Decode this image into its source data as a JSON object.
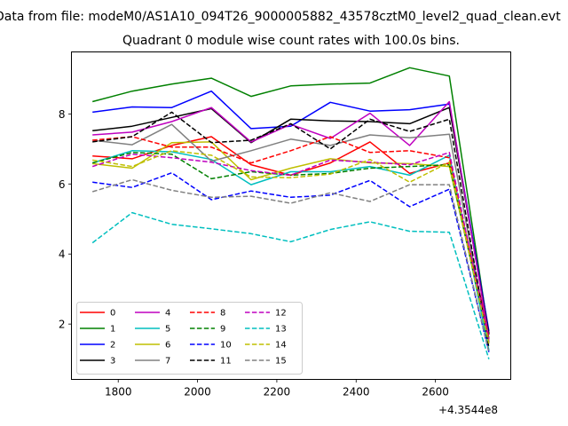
{
  "chart_data": {
    "type": "line",
    "suptitle": "Data from file: modeM0/AS1A10_094T26_9000005882_43578cztM0_level2_quad_clean.evt",
    "title": "Quadrant 0 module wise count rates with 100.0s bins.",
    "xlabel": "",
    "ylabel": "",
    "x_offset_label": "+4.3544e8",
    "x": [
      1735,
      1835,
      1935,
      2035,
      2135,
      2235,
      2335,
      2435,
      2535,
      2635,
      2735
    ],
    "xlim": [
      1682,
      2790
    ],
    "ylim": [
      0.42,
      9.77
    ],
    "xticks": [
      1800,
      2000,
      2200,
      2400,
      2600
    ],
    "yticks": [
      2,
      4,
      6,
      8
    ],
    "grid": false,
    "legend_position": "lower left",
    "legend_columns": 4,
    "series": [
      {
        "name": "0",
        "color": "#ff0000",
        "dash": "solid",
        "values": [
          6.8,
          6.72,
          7.1,
          7.35,
          6.55,
          6.25,
          6.6,
          7.2,
          6.3,
          6.6,
          1.75
        ]
      },
      {
        "name": "1",
        "color": "#008000",
        "dash": "solid",
        "values": [
          8.35,
          8.65,
          8.85,
          9.02,
          8.5,
          8.8,
          8.85,
          8.88,
          9.32,
          9.08,
          1.7
        ]
      },
      {
        "name": "2",
        "color": "#0000ff",
        "dash": "solid",
        "values": [
          8.05,
          8.2,
          8.18,
          8.65,
          7.58,
          7.65,
          8.33,
          8.08,
          8.12,
          8.28,
          1.8
        ]
      },
      {
        "name": "3",
        "color": "#000000",
        "dash": "solid",
        "values": [
          7.52,
          7.65,
          7.9,
          8.15,
          7.18,
          7.85,
          7.8,
          7.78,
          7.72,
          8.18,
          1.72
        ]
      },
      {
        "name": "4",
        "color": "#bf00bf",
        "dash": "solid",
        "values": [
          7.4,
          7.48,
          7.78,
          8.18,
          7.2,
          7.7,
          7.3,
          8.02,
          7.1,
          8.35,
          1.6
        ]
      },
      {
        "name": "5",
        "color": "#00bfbf",
        "dash": "solid",
        "values": [
          6.6,
          6.95,
          6.92,
          6.7,
          5.98,
          6.35,
          6.35,
          6.5,
          6.25,
          6.82,
          1.25
        ]
      },
      {
        "name": "6",
        "color": "#bfbf00",
        "dash": "solid",
        "values": [
          6.58,
          6.45,
          7.18,
          7.2,
          6.12,
          6.45,
          6.72,
          6.6,
          6.58,
          6.5,
          1.55
        ]
      },
      {
        "name": "7",
        "color": "#808080",
        "dash": "solid",
        "values": [
          7.25,
          7.12,
          7.7,
          6.65,
          6.95,
          7.28,
          7.1,
          7.4,
          7.32,
          7.42,
          1.45
        ]
      },
      {
        "name": "8",
        "color": "#ff0000",
        "dash": "dashed",
        "values": [
          7.25,
          7.35,
          7.05,
          7.05,
          6.6,
          6.95,
          7.35,
          6.9,
          6.95,
          6.75,
          1.58
        ]
      },
      {
        "name": "9",
        "color": "#008000",
        "dash": "dashed",
        "values": [
          6.6,
          6.9,
          6.85,
          6.15,
          6.35,
          6.25,
          6.3,
          6.45,
          6.5,
          6.55,
          1.5
        ]
      },
      {
        "name": "10",
        "color": "#0000ff",
        "dash": "dashed",
        "values": [
          6.05,
          5.9,
          6.32,
          5.55,
          5.8,
          5.62,
          5.68,
          6.1,
          5.35,
          5.85,
          1.2
        ]
      },
      {
        "name": "11",
        "color": "#000000",
        "dash": "dashed",
        "values": [
          7.2,
          7.35,
          8.05,
          7.18,
          7.25,
          7.72,
          7.0,
          7.85,
          7.5,
          7.85,
          1.32
        ]
      },
      {
        "name": "12",
        "color": "#bf00bf",
        "dash": "dashed",
        "values": [
          6.5,
          6.85,
          6.75,
          6.62,
          6.38,
          6.25,
          6.68,
          6.62,
          6.55,
          6.9,
          1.5
        ]
      },
      {
        "name": "13",
        "color": "#00bfbf",
        "dash": "dashed",
        "values": [
          4.32,
          5.18,
          4.85,
          4.72,
          4.58,
          4.35,
          4.7,
          4.92,
          4.65,
          4.62,
          1.0
        ]
      },
      {
        "name": "14",
        "color": "#bfbf00",
        "dash": "dashed",
        "values": [
          6.68,
          6.5,
          6.95,
          6.82,
          6.2,
          6.18,
          6.28,
          6.7,
          6.05,
          6.62,
          1.45
        ]
      },
      {
        "name": "15",
        "color": "#808080",
        "dash": "dashed",
        "values": [
          5.78,
          6.12,
          5.82,
          5.62,
          5.65,
          5.45,
          5.75,
          5.5,
          5.98,
          5.98,
          1.2
        ]
      }
    ]
  }
}
